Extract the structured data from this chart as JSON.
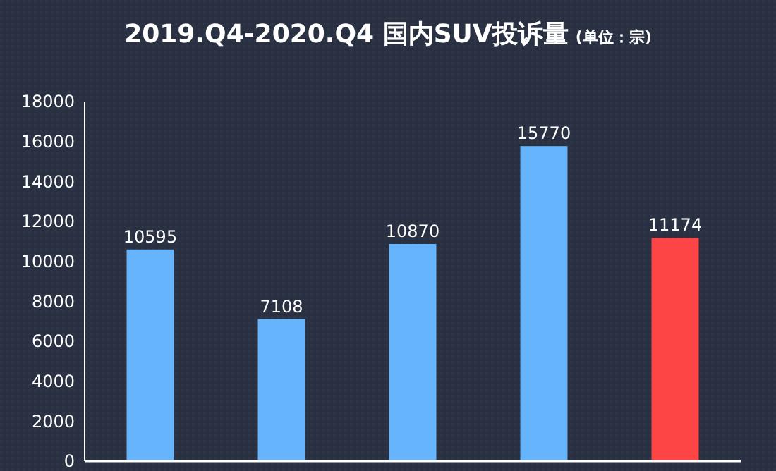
{
  "chart_data": {
    "type": "bar",
    "title": "2019.Q4-2020.Q4 国内SUV投诉量",
    "subtitle": "(单位：宗)",
    "categories": [
      null,
      null,
      null,
      null,
      null
    ],
    "values": [
      10595,
      7108,
      10870,
      15770,
      11174
    ],
    "colors": [
      "#66b5fc",
      "#66b5fc",
      "#66b5fc",
      "#66b5fc",
      "#fd4545"
    ],
    "ylim": [
      0,
      18000
    ],
    "yticks": [
      0,
      2000,
      4000,
      6000,
      8000,
      10000,
      12000,
      14000,
      16000,
      18000
    ],
    "data_labels": true
  }
}
